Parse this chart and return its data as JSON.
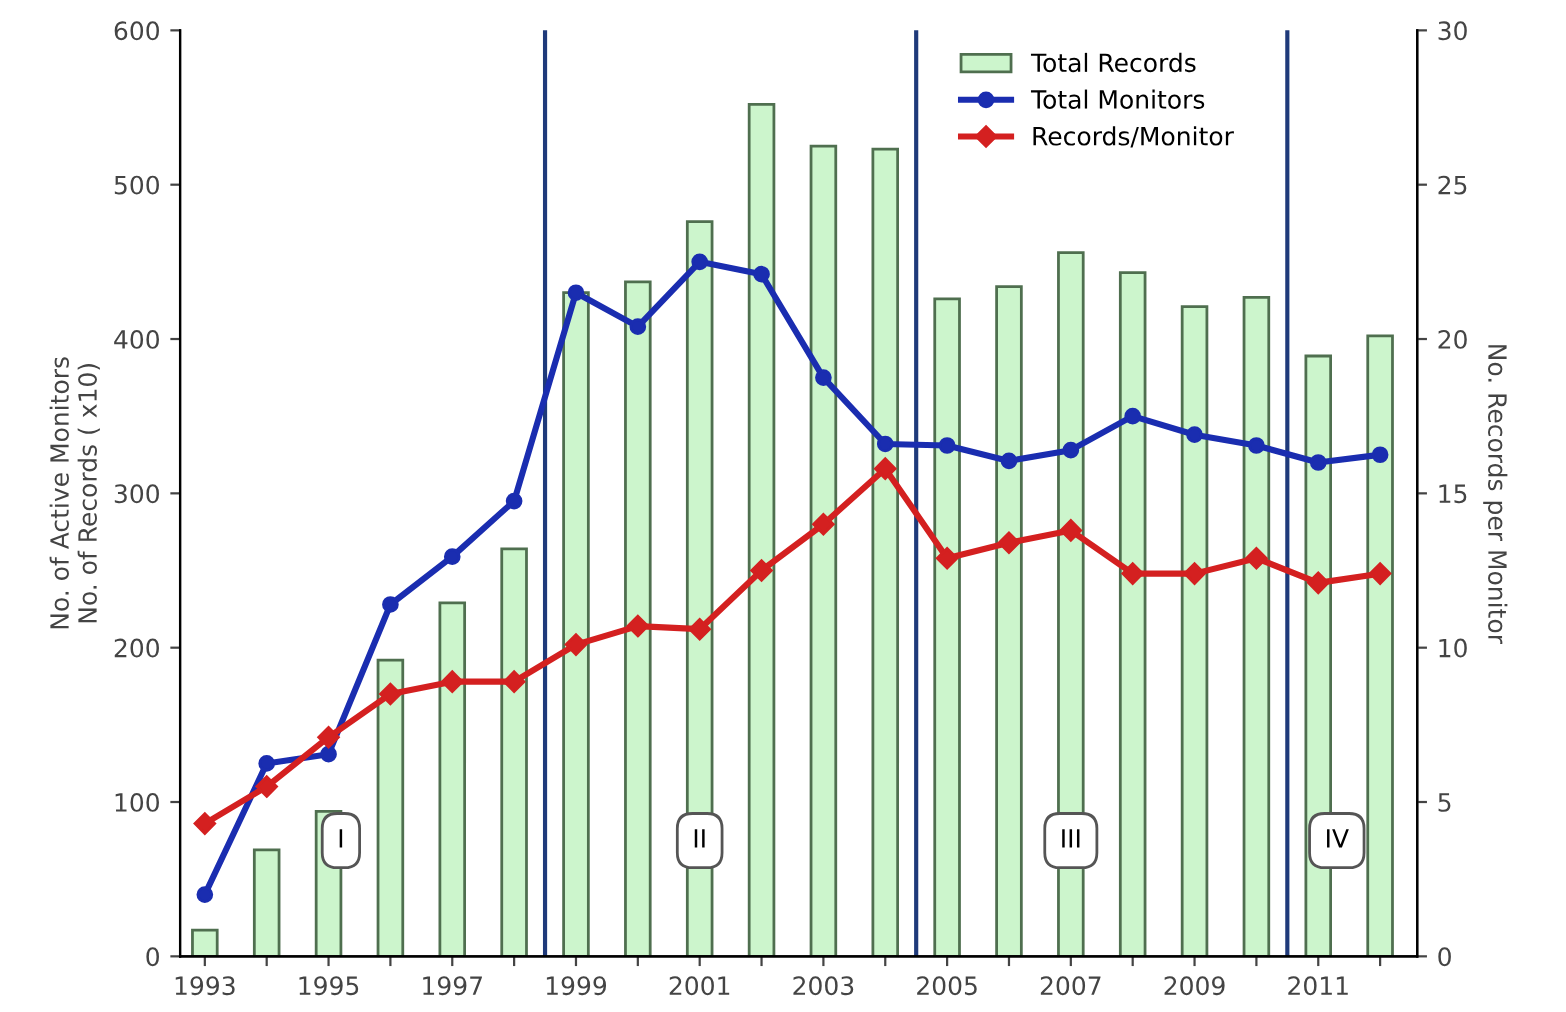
{
  "chart_data": {
    "type": "bar",
    "ylabel": "No. of Active Monitors\nNo. of Records ( x10)",
    "y2label": "No. Records per Monitor",
    "x": [
      1993,
      1994,
      1995,
      1996,
      1997,
      1998,
      1999,
      2000,
      2001,
      2002,
      2003,
      2004,
      2005,
      2006,
      2007,
      2008,
      2009,
      2010,
      2011,
      2012
    ],
    "series": [
      {
        "name": "Total Records",
        "color": "#ccf5cc",
        "values": [
          17,
          69,
          94,
          192,
          229,
          264,
          430,
          437,
          476,
          552,
          525,
          523,
          426,
          434,
          456,
          443,
          421,
          427,
          389,
          402
        ]
      },
      {
        "name": "Total Monitors",
        "type": "line",
        "color": "#1a2db0",
        "marker": "circle",
        "values": [
          40,
          125,
          131,
          228,
          259,
          295,
          430,
          408,
          450,
          442,
          375,
          332,
          331,
          321,
          328,
          350,
          338,
          331,
          320,
          325
        ]
      },
      {
        "name": "Records/Monitor",
        "type": "line",
        "axis": "y2",
        "color": "#d42020",
        "marker": "diamond",
        "values": [
          4.3,
          5.5,
          7.1,
          8.5,
          8.9,
          8.9,
          10.1,
          10.7,
          10.6,
          12.5,
          14.0,
          15.8,
          12.9,
          13.4,
          13.8,
          12.4,
          12.4,
          12.9,
          12.1,
          12.4
        ]
      }
    ],
    "xlim": [
      1992.6,
      2012.6
    ],
    "xticks": [
      1993,
      {
        "value": 1994,
        "label": null
      },
      1995,
      {
        "value": 1996,
        "label": null
      },
      1997,
      {
        "value": 1998,
        "label": null
      },
      1999,
      {
        "value": 2000,
        "label": null
      },
      2001,
      {
        "value": 2002,
        "label": null
      },
      2003,
      {
        "value": 2004,
        "label": null
      },
      2005,
      {
        "value": 2006,
        "label": null
      },
      2007,
      {
        "value": 2008,
        "label": null
      },
      2009,
      {
        "value": 2010,
        "label": null
      },
      2011,
      {
        "value": 2012,
        "label": null
      }
    ],
    "ylim": [
      0,
      600
    ],
    "yticks": [
      0,
      100,
      200,
      300,
      400,
      500,
      600
    ],
    "y2lim": [
      0,
      30
    ],
    "y2ticks": [
      0,
      5,
      10,
      15,
      20,
      25,
      30
    ],
    "ref_lines": [
      {
        "axis": "x",
        "value": 1998.5,
        "color": "#1f3a7a"
      },
      {
        "axis": "x",
        "value": 2004.5,
        "color": "#1f3a7a"
      },
      {
        "axis": "x",
        "value": 2010.5,
        "color": "#1f3a7a"
      }
    ],
    "annotations": [
      {
        "text": "I",
        "x": 1995.2,
        "y": 75
      },
      {
        "text": "II",
        "x": 2001,
        "y": 75
      },
      {
        "text": "III",
        "x": 2007,
        "y": 75
      },
      {
        "text": "IV",
        "x": 2011.3,
        "y": 75
      }
    ],
    "legend": "top right",
    "grid": false
  }
}
